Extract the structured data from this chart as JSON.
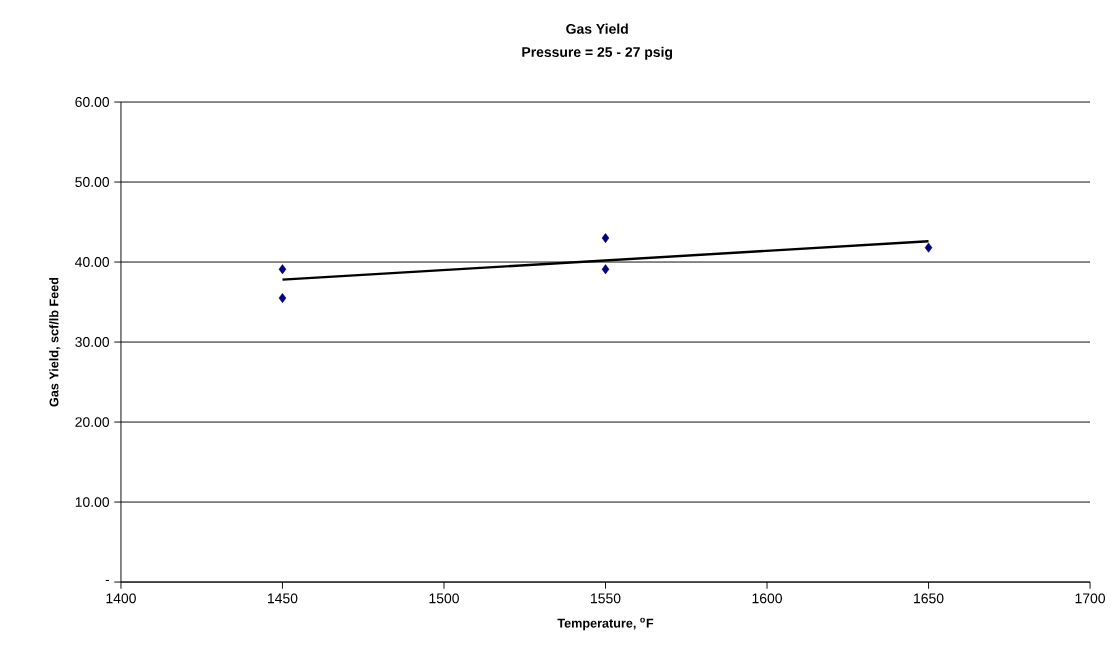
{
  "chart_data": {
    "type": "scatter",
    "title": "Gas Yield",
    "subtitle": "Pressure = 25 - 27 psig",
    "xlabel": "Temperature, $^{o}$F",
    "ylabel": "Gas Yield, scf/lb Feed",
    "series": [
      {
        "color": "#000080",
        "marker": "diamond",
        "x": [
          1450,
          1450,
          1550,
          1550,
          1650
        ],
        "values": [
          39.1,
          35.5,
          43.0,
          39.1,
          41.8
        ]
      },
      {
        "type": "line",
        "color": "#000000",
        "marker": "none",
        "x": [
          1450,
          1650
        ],
        "values": [
          37.8,
          42.6
        ]
      }
    ],
    "xlim": [
      1400,
      1700
    ],
    "xticks": [
      1400,
      1450,
      1500,
      1550,
      1600,
      1650,
      1700
    ],
    "ylim": [
      0,
      60
    ],
    "yticks": [
      {
        "value": 0,
        "label": "-"
      },
      {
        "value": 10,
        "label": "10.00"
      },
      {
        "value": 20,
        "label": "20.00"
      },
      {
        "value": 30,
        "label": "30.00"
      },
      {
        "value": 40,
        "label": "40.00"
      },
      {
        "value": 50,
        "label": "50.00"
      },
      {
        "value": 60,
        "label": "60.00"
      }
    ],
    "grid": "y"
  }
}
